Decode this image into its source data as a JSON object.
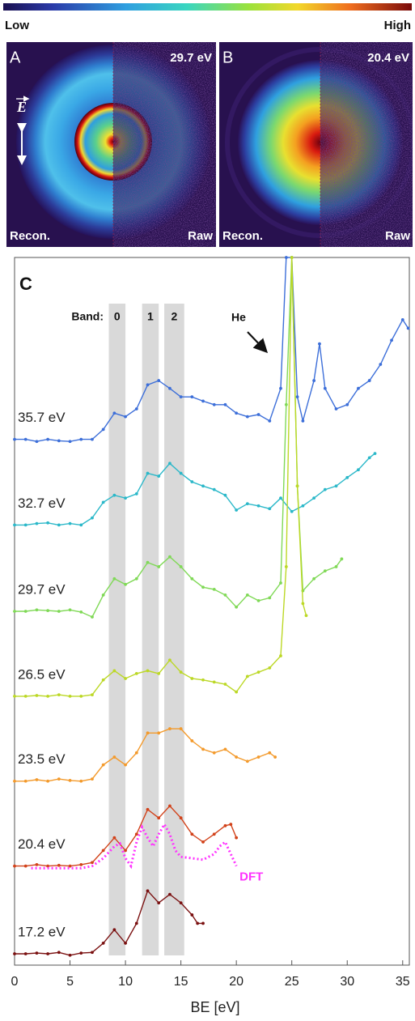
{
  "colorbar": {
    "low": "Low",
    "high": "High"
  },
  "panels": [
    {
      "letter": "A",
      "energy": "29.7 eV",
      "left": "Recon.",
      "right": "Raw",
      "field_label": "E"
    },
    {
      "letter": "B",
      "energy": "20.4 eV",
      "left": "Recon.",
      "right": "Raw"
    }
  ],
  "chart_data": {
    "type": "line",
    "panel_label": "C",
    "xlabel": "BE [eV]",
    "xlim": [
      0,
      35.6
    ],
    "xticks": [
      0,
      5,
      10,
      15,
      20,
      25,
      30,
      35
    ],
    "ylim": [
      0,
      100
    ],
    "band_title": "Band:",
    "bands": [
      {
        "label": "0",
        "x0": 8.5,
        "x1": 10
      },
      {
        "label": "1",
        "x0": 11.5,
        "x1": 13
      },
      {
        "label": "2",
        "x0": 13.5,
        "x1": 15.3
      }
    ],
    "annotation": "He",
    "series": [
      {
        "name": "35.7 eV",
        "color": "#3d6fd9",
        "x": [
          0,
          1,
          2,
          3,
          4,
          5,
          6,
          7,
          8,
          9,
          10,
          11,
          12,
          13,
          14,
          15,
          16,
          17,
          18,
          19,
          20,
          21,
          22,
          23,
          24,
          24.5,
          25,
          25.5,
          26,
          27,
          27.5,
          28,
          29,
          30,
          31,
          32,
          33,
          34,
          35,
          35.5
        ],
        "values": [
          74.3,
          74.3,
          74.0,
          74.3,
          74.1,
          74.0,
          74.3,
          74.3,
          75.7,
          78.0,
          77.5,
          78.6,
          82.0,
          82.6,
          81.5,
          80.3,
          80.3,
          79.7,
          79.2,
          79.2,
          78.0,
          77.5,
          77.8,
          76.9,
          81.5,
          100,
          100,
          80.3,
          76.9,
          82.6,
          87.8,
          81.5,
          78.6,
          79.2,
          81.5,
          82.6,
          84.9,
          88.3,
          91.2,
          90.0
        ]
      },
      {
        "name": "32.7 eV",
        "color": "#2bb8c9",
        "x": [
          0,
          1,
          2,
          3,
          4,
          5,
          6,
          7,
          8,
          9,
          10,
          11,
          12,
          13,
          14,
          15,
          16,
          17,
          18,
          19,
          20,
          21,
          22,
          23,
          24,
          25,
          26,
          27,
          28,
          29,
          30,
          31,
          32,
          32.5
        ],
        "values": [
          62.2,
          62.2,
          62.4,
          62.5,
          62.2,
          62.4,
          62.2,
          63.2,
          65.4,
          66.4,
          66.0,
          66.6,
          69.5,
          69.1,
          70.9,
          69.5,
          68.3,
          67.7,
          67.2,
          66.4,
          64.3,
          65.2,
          64.9,
          64.5,
          66.0,
          64.1,
          64.9,
          66.0,
          67.2,
          67.7,
          68.9,
          70.0,
          71.7,
          72.3
        ]
      },
      {
        "name": "29.7 eV",
        "color": "#80d957",
        "x": [
          0,
          1,
          2,
          3,
          4,
          5,
          6,
          7,
          8,
          9,
          10,
          11,
          12,
          13,
          14,
          15,
          16,
          17,
          18,
          19,
          20,
          21,
          22,
          23,
          24,
          24.5,
          25,
          25.5,
          26,
          27,
          28,
          29,
          29.5
        ],
        "values": [
          50.0,
          50.0,
          50.2,
          50.1,
          50.0,
          50.2,
          49.9,
          49.2,
          52.3,
          54.6,
          53.8,
          54.6,
          56.9,
          56.3,
          57.7,
          56.3,
          54.6,
          53.4,
          53.1,
          52.3,
          50.6,
          52.3,
          51.5,
          51.9,
          54.0,
          79.2,
          100,
          67.7,
          52.9,
          54.6,
          55.7,
          56.3,
          57.4
        ]
      },
      {
        "name": "26.5 eV",
        "color": "#bcd826",
        "x": [
          0,
          1,
          2,
          3,
          4,
          5,
          6,
          7,
          8,
          9,
          10,
          11,
          12,
          13,
          14,
          15,
          16,
          17,
          18,
          19,
          20,
          21,
          22,
          23,
          24,
          24.5,
          25,
          25.5,
          26,
          26.3
        ],
        "values": [
          38.0,
          38.0,
          38.1,
          38.0,
          38.2,
          38.0,
          38.0,
          38.2,
          40.3,
          41.6,
          40.5,
          41.2,
          41.6,
          41.2,
          43.1,
          41.4,
          40.5,
          40.3,
          40.0,
          39.7,
          38.6,
          40.8,
          41.4,
          42.0,
          43.7,
          56.3,
          100,
          67.7,
          51.1,
          49.4
        ]
      },
      {
        "name": "23.5 eV",
        "color": "#f39a2c",
        "x": [
          0,
          1,
          2,
          3,
          4,
          5,
          6,
          7,
          8,
          9,
          10,
          11,
          12,
          13,
          14,
          15,
          16,
          17,
          18,
          19,
          20,
          21,
          22,
          23,
          23.5
        ],
        "values": [
          26.0,
          26.0,
          26.2,
          26.0,
          26.3,
          26.1,
          26.0,
          26.3,
          28.3,
          29.4,
          28.3,
          30.0,
          32.8,
          32.8,
          33.4,
          33.4,
          31.7,
          30.5,
          30.0,
          30.5,
          29.4,
          28.8,
          29.4,
          30.0,
          29.4
        ]
      },
      {
        "name": "20.4 eV",
        "color": "#d2421a",
        "x": [
          0,
          1,
          2,
          3,
          4,
          5,
          6,
          7,
          8,
          9,
          10,
          11,
          12,
          13,
          14,
          15,
          16,
          17,
          18,
          19,
          19.5,
          20
        ],
        "values": [
          14.0,
          14.0,
          14.2,
          14.0,
          14.1,
          14.0,
          14.2,
          14.5,
          16.2,
          18.0,
          16.2,
          18.5,
          22.0,
          20.8,
          22.5,
          20.8,
          18.5,
          17.4,
          18.5,
          19.7,
          19.9,
          18.0
        ]
      },
      {
        "name": "DFT",
        "color": "#ff33ff",
        "line_style": "dotted",
        "x": [
          1.5,
          2,
          3,
          4,
          5,
          6,
          7,
          8,
          9,
          9.5,
          10,
          10.5,
          11,
          11.5,
          12,
          12.5,
          13,
          13.5,
          14,
          14.5,
          15,
          16,
          17,
          18,
          18.5,
          19,
          19.5,
          20
        ],
        "values": [
          13.7,
          13.7,
          13.7,
          13.7,
          13.7,
          13.7,
          14.0,
          15.1,
          16.8,
          17.2,
          15.1,
          14.0,
          17.4,
          19.5,
          18.0,
          16.8,
          18.5,
          19.9,
          18.5,
          16.2,
          15.3,
          15.1,
          14.9,
          15.7,
          16.8,
          17.4,
          15.7,
          14.0
        ]
      },
      {
        "name": "17.2 eV",
        "color": "#7a1010",
        "x": [
          0,
          1,
          2,
          3,
          4,
          5,
          6,
          7,
          8,
          9,
          10,
          11,
          12,
          13,
          14,
          15,
          16,
          16.5,
          17
        ],
        "values": [
          1.6,
          1.6,
          1.7,
          1.6,
          1.8,
          1.4,
          1.7,
          1.8,
          3.1,
          5.0,
          3.1,
          5.9,
          10.5,
          8.8,
          10.0,
          8.8,
          7.1,
          5.9,
          5.9
        ]
      }
    ]
  }
}
